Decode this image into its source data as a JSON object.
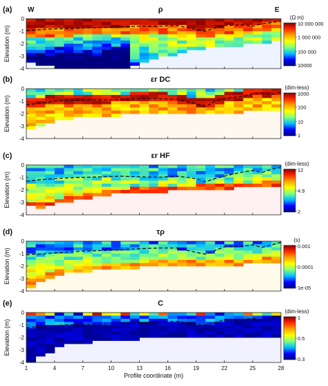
{
  "chart_data": [
    {
      "type": "heatmap",
      "panel_label": "(a)",
      "title": "ρ",
      "left_label": "W",
      "right_label": "E",
      "ylabel": "Elevation (m)",
      "xlabel": "",
      "xlim": [
        1,
        28
      ],
      "ylim": [
        -4,
        0
      ],
      "y_ticks": [
        "0",
        "-1",
        "-2",
        "-3",
        "-4"
      ],
      "x_ticks": [],
      "colorbar_label": "(Ω m)",
      "colorbar_scale": "log",
      "colorbar_ticks": [
        "10 000 000",
        "1 000 000",
        "100 000",
        "10000"
      ],
      "colorbar_colors": [
        "#8b0000",
        "#ff2a00",
        "#ffa500",
        "#ffff00",
        "#7fff7f",
        "#00bfff",
        "#0000ff",
        "#00007f"
      ],
      "dashed_line": [
        [
          1,
          -0.95
        ],
        [
          3,
          -0.85
        ],
        [
          5,
          -0.8
        ],
        [
          7,
          -0.75
        ],
        [
          9,
          -0.7
        ],
        [
          11,
          -0.65
        ],
        [
          13,
          -0.6
        ],
        [
          15,
          -0.6
        ],
        [
          17,
          -0.55
        ],
        [
          19,
          -0.85
        ],
        [
          20,
          -1.0
        ],
        [
          21,
          -0.75
        ],
        [
          22,
          -0.55
        ],
        [
          24,
          -0.5
        ],
        [
          25,
          -0.6
        ],
        [
          26,
          -0.4
        ],
        [
          27,
          -0.3
        ],
        [
          28,
          -0.2
        ]
      ],
      "model_bottom": [
        [
          1,
          -3.5
        ],
        [
          2,
          -3.5
        ],
        [
          3,
          -3.8
        ],
        [
          5,
          -4.0
        ],
        [
          7,
          -4.0
        ],
        [
          9,
          -4.0
        ],
        [
          11,
          -4.0
        ],
        [
          13,
          -3.5
        ],
        [
          15,
          -3.1
        ],
        [
          17,
          -2.8
        ],
        [
          19,
          -2.5
        ],
        [
          21,
          -2.3
        ],
        [
          23,
          -2.2
        ],
        [
          25,
          -2.0
        ],
        [
          28,
          -1.8
        ]
      ]
    },
    {
      "type": "heatmap",
      "panel_label": "(b)",
      "title": "εr DC",
      "ylabel": "Elevation (m)",
      "xlabel": "",
      "xlim": [
        1,
        28
      ],
      "ylim": [
        -4,
        0
      ],
      "y_ticks": [
        "0",
        "-1",
        "-2",
        "-3",
        "-4"
      ],
      "x_ticks": [],
      "colorbar_label": "(dim-less)",
      "colorbar_scale": "log",
      "colorbar_ticks": [
        "1000",
        "100",
        "10",
        "1"
      ],
      "colorbar_colors": [
        "#8b0000",
        "#ff2a00",
        "#ffa500",
        "#ffff00",
        "#7fff7f",
        "#00bfff",
        "#0000ff",
        "#00007f"
      ],
      "dashed_line": [
        [
          1,
          -1.3
        ],
        [
          3,
          -1.1
        ],
        [
          5,
          -0.95
        ],
        [
          7,
          -0.9
        ],
        [
          9,
          -0.9
        ],
        [
          11,
          -0.85
        ],
        [
          13,
          -0.8
        ],
        [
          15,
          -0.8
        ],
        [
          17,
          -0.85
        ],
        [
          19,
          -1.2
        ],
        [
          20,
          -1.45
        ],
        [
          21,
          -1.0
        ],
        [
          22,
          -0.8
        ],
        [
          24,
          -0.6
        ],
        [
          25,
          -0.4
        ],
        [
          26,
          -0.35
        ],
        [
          27,
          -0.45
        ],
        [
          28,
          -0.3
        ]
      ],
      "model_bottom": [
        [
          1,
          -3.3
        ],
        [
          2,
          -3.0
        ],
        [
          3,
          -2.8
        ],
        [
          5,
          -2.5
        ],
        [
          7,
          -2.3
        ],
        [
          9,
          -2.2
        ],
        [
          11,
          -2.1
        ],
        [
          13,
          -2.0
        ],
        [
          15,
          -1.9
        ],
        [
          17,
          -1.9
        ],
        [
          19,
          -1.9
        ],
        [
          21,
          -1.9
        ],
        [
          23,
          -1.9
        ],
        [
          25,
          -1.8
        ],
        [
          28,
          -1.6
        ]
      ]
    },
    {
      "type": "heatmap",
      "panel_label": "(c)",
      "title": "εr HF",
      "ylabel": "Elevation (m)",
      "xlabel": "",
      "xlim": [
        1,
        28
      ],
      "ylim": [
        -4,
        0
      ],
      "y_ticks": [
        "0",
        "-1",
        "-2",
        "-3",
        "-4"
      ],
      "x_ticks": [],
      "colorbar_label": "(dim-less)",
      "colorbar_scale": "log",
      "colorbar_ticks": [
        "12",
        "4.9",
        "2"
      ],
      "colorbar_colors": [
        "#8b0000",
        "#ff2a00",
        "#ffa500",
        "#ffff00",
        "#7fff7f",
        "#00bfff",
        "#0000ff",
        "#00007f"
      ],
      "dashed_line": [
        [
          1,
          -1.3
        ],
        [
          3,
          -1.15
        ],
        [
          5,
          -1.05
        ],
        [
          7,
          -1.0
        ],
        [
          9,
          -0.95
        ],
        [
          11,
          -0.9
        ],
        [
          13,
          -0.95
        ],
        [
          15,
          -1.0
        ],
        [
          17,
          -0.9
        ],
        [
          19,
          -1.1
        ],
        [
          20,
          -1.35
        ],
        [
          21,
          -1.1
        ],
        [
          22,
          -0.9
        ],
        [
          24,
          -0.55
        ],
        [
          25,
          -0.45
        ],
        [
          26,
          -0.6
        ],
        [
          27,
          -0.35
        ],
        [
          28,
          -0.2
        ]
      ],
      "model_bottom": [
        [
          1,
          -3.2
        ],
        [
          2,
          -3.4
        ],
        [
          3,
          -3.5
        ],
        [
          4,
          -3.0
        ],
        [
          5,
          -3.1
        ],
        [
          6,
          -2.8
        ],
        [
          8,
          -2.6
        ],
        [
          10,
          -2.4
        ],
        [
          12,
          -2.2
        ],
        [
          14,
          -2.2
        ],
        [
          16,
          -2.1
        ],
        [
          18,
          -2.0
        ],
        [
          20,
          -1.9
        ],
        [
          22,
          -1.9
        ],
        [
          24,
          -1.8
        ],
        [
          26,
          -1.7
        ],
        [
          28,
          -1.6
        ]
      ]
    },
    {
      "type": "heatmap",
      "panel_label": "(d)",
      "title": "τρ",
      "ylabel": "Elevation (m)",
      "xlabel": "",
      "xlim": [
        1,
        28
      ],
      "ylim": [
        -4,
        0
      ],
      "y_ticks": [
        "0",
        "-1",
        "-2",
        "-3",
        "-4"
      ],
      "x_ticks": [],
      "colorbar_label": "(s)",
      "colorbar_scale": "log",
      "colorbar_ticks": [
        "0.001",
        "0.0001",
        "1e-05"
      ],
      "colorbar_colors": [
        "#8b0000",
        "#ff2a00",
        "#ffa500",
        "#ffff00",
        "#7fff7f",
        "#00bfff",
        "#0000ff",
        "#00007f"
      ],
      "dashed_line": [
        [
          1,
          -1.1
        ],
        [
          3,
          -1.0
        ],
        [
          5,
          -0.9
        ],
        [
          7,
          -0.8
        ],
        [
          9,
          -0.75
        ],
        [
          11,
          -0.7
        ],
        [
          13,
          -0.6
        ],
        [
          15,
          -0.55
        ],
        [
          17,
          -0.55
        ],
        [
          19,
          -0.9
        ],
        [
          20,
          -1.05
        ],
        [
          21,
          -0.75
        ],
        [
          22,
          -0.45
        ],
        [
          24,
          -0.4
        ],
        [
          25,
          -0.3
        ],
        [
          26,
          -0.5
        ],
        [
          27,
          -0.3
        ],
        [
          28,
          -0.1
        ]
      ],
      "model_bottom": [
        [
          1,
          -3.9
        ],
        [
          2,
          -3.6
        ],
        [
          3,
          -3.1
        ],
        [
          4,
          -2.8
        ],
        [
          5,
          -2.6
        ],
        [
          7,
          -2.4
        ],
        [
          9,
          -2.3
        ],
        [
          11,
          -2.2
        ],
        [
          13,
          -2.1
        ],
        [
          15,
          -2.0
        ],
        [
          17,
          -2.0
        ],
        [
          19,
          -2.0
        ],
        [
          21,
          -1.95
        ],
        [
          23,
          -1.9
        ],
        [
          25,
          -1.85
        ],
        [
          28,
          -1.7
        ]
      ]
    },
    {
      "type": "heatmap",
      "panel_label": "(e)",
      "title": "C",
      "ylabel": "Elevation (m)",
      "xlabel": "Profile coordinate (m)",
      "xlim": [
        1,
        28
      ],
      "ylim": [
        -4,
        0
      ],
      "y_ticks": [
        "0",
        "-1",
        "-2",
        "-3",
        "-4"
      ],
      "x_ticks": [
        "1",
        "4",
        "7",
        "10",
        "13",
        "16",
        "19",
        "22",
        "25",
        "28"
      ],
      "colorbar_label": "(dim-less)",
      "colorbar_scale": "linear",
      "colorbar_ticks": [
        "1",
        "0.5",
        "0.3"
      ],
      "colorbar_colors": [
        "#8b0000",
        "#ff2a00",
        "#ffa500",
        "#ffff00",
        "#7fff7f",
        "#00bfff",
        "#0000ff",
        "#00007f"
      ],
      "dashed_line": [
        [
          1,
          -1.2
        ],
        [
          3,
          -1.1
        ],
        [
          5,
          -1.0
        ],
        [
          7,
          -0.95
        ],
        [
          9,
          -0.9
        ],
        [
          11,
          -0.85
        ],
        [
          13,
          -0.8
        ],
        [
          15,
          -0.75
        ],
        [
          17,
          -0.7
        ],
        [
          19,
          -0.9
        ],
        [
          20,
          -1.0
        ],
        [
          21,
          -0.8
        ],
        [
          22,
          -0.6
        ],
        [
          24,
          -0.55
        ],
        [
          25,
          -0.45
        ],
        [
          26,
          -0.6
        ],
        [
          27,
          -0.4
        ],
        [
          28,
          -0.3
        ]
      ],
      "model_bottom": [
        [
          1,
          -4.0
        ],
        [
          2,
          -3.8
        ],
        [
          3,
          -3.4
        ],
        [
          4,
          -2.9
        ],
        [
          5,
          -2.6
        ],
        [
          7,
          -2.4
        ],
        [
          9,
          -2.3
        ],
        [
          11,
          -2.2
        ],
        [
          13,
          -2.1
        ],
        [
          15,
          -2.1
        ],
        [
          17,
          -2.05
        ],
        [
          19,
          -2.0
        ],
        [
          21,
          -2.0
        ],
        [
          23,
          -2.0
        ],
        [
          25,
          -1.95
        ],
        [
          28,
          -1.9
        ]
      ]
    }
  ]
}
